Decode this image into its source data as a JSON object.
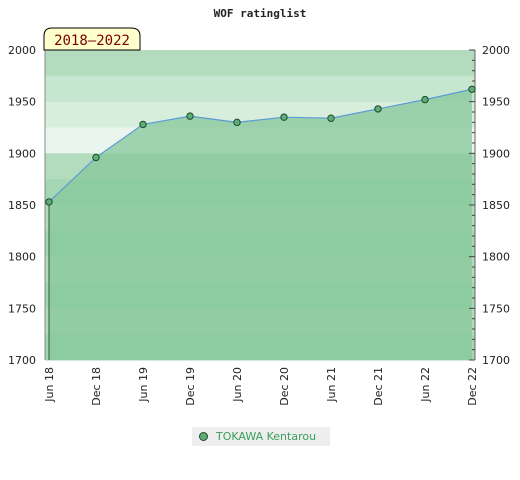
{
  "chart_data": {
    "type": "area",
    "title": "WOF ratinglist",
    "badge": "2018–2022",
    "x": [
      "Jun 18",
      "Dec 18",
      "Jun 19",
      "Dec 19",
      "Jun 20",
      "Dec 20",
      "Jun 21",
      "Dec 21",
      "Jun 22",
      "Dec 22"
    ],
    "series": [
      {
        "name": "TOKAWA Kentarou",
        "values": [
          1853,
          1896,
          1928,
          1936,
          1930,
          1935,
          1934,
          1943,
          1952,
          1962
        ]
      }
    ],
    "ylim": [
      1700,
      2000
    ],
    "yticks": [
      1700,
      1750,
      1800,
      1850,
      1900,
      1950,
      2000
    ],
    "y_axes": "left-and-right",
    "grid": true,
    "legend_position": "bottom",
    "colors": {
      "line": "#5b9bd5",
      "fill": "#86c79a",
      "marker": "#5cae76",
      "badge_bg": "#ffffcc",
      "badge_text": "#7a0000"
    }
  }
}
